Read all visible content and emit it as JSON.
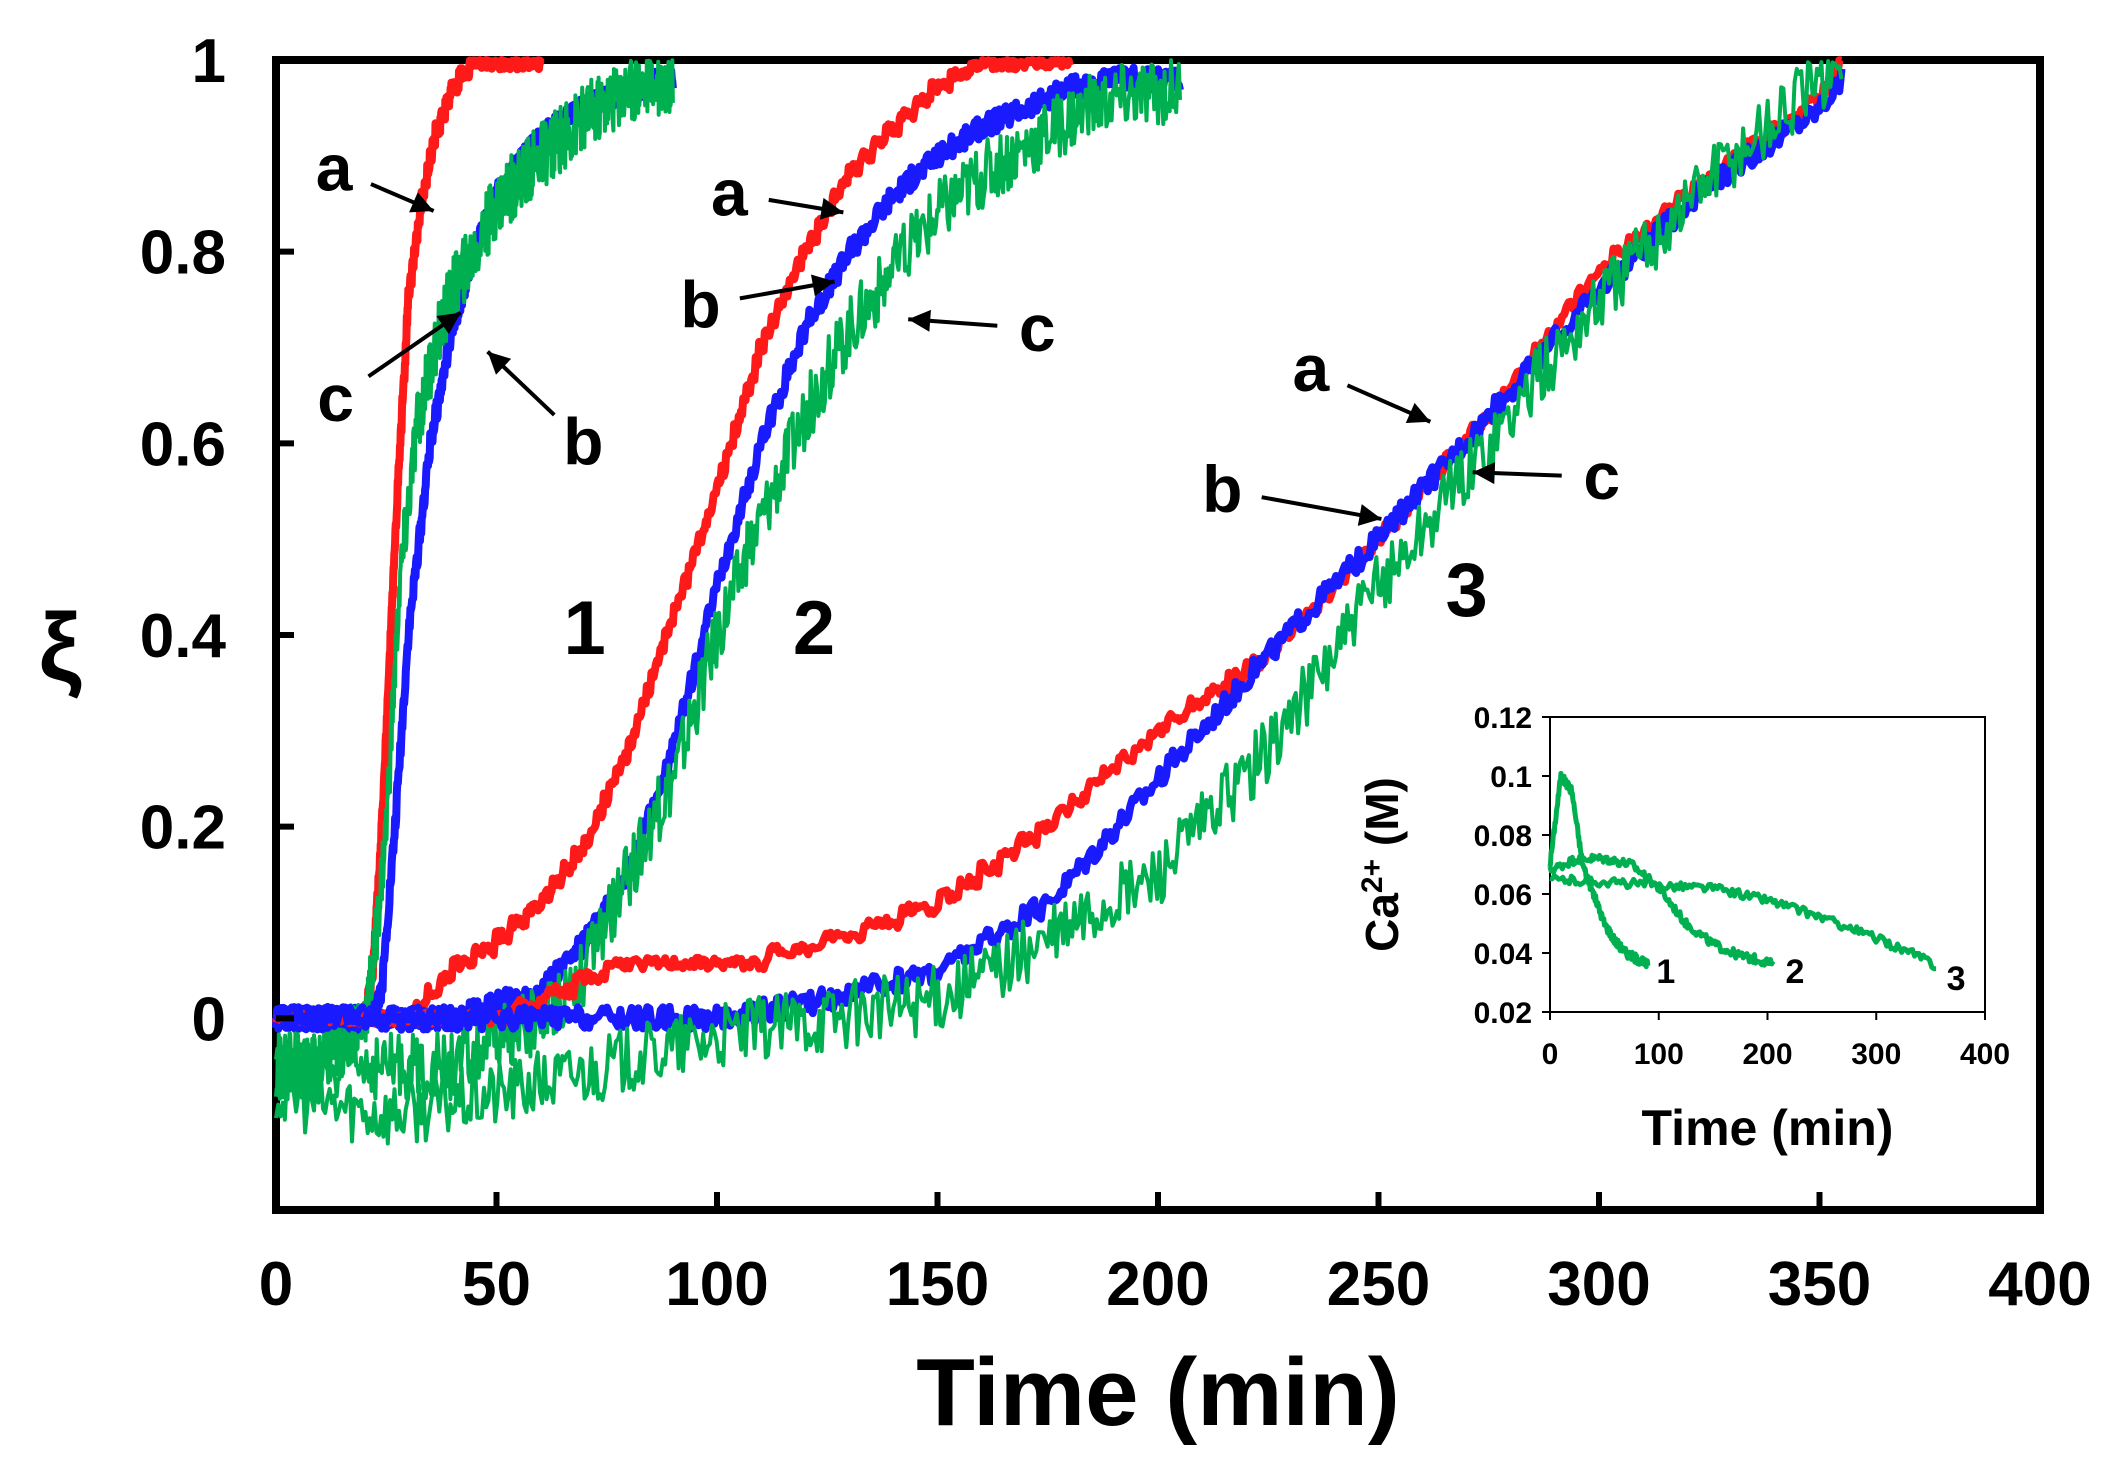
{
  "chart_data": {
    "type": "line",
    "title": "",
    "xlabel": "Time (min)",
    "ylabel": "ξ",
    "xlim": [
      0,
      400
    ],
    "ylim": [
      -0.2,
      1.0
    ],
    "x_ticks": [
      "0",
      "50",
      "100",
      "150",
      "200",
      "250",
      "300",
      "350",
      "400"
    ],
    "y_ticks": [
      "0",
      "0.2",
      "0.4",
      "0.6",
      "0.8",
      "1"
    ],
    "colors": {
      "a": "#ff1a1a",
      "b": "#1a1aff",
      "c": "#00b050"
    },
    "groups": [
      {
        "label": "1",
        "series": [
          {
            "name": "a",
            "x": [
              0,
              10,
              20,
              22,
              24,
              27,
              30,
              33,
              36,
              40,
              45,
              50,
              55,
              60
            ],
            "y": [
              0,
              0,
              0,
              0.05,
              0.2,
              0.5,
              0.75,
              0.85,
              0.92,
              0.97,
              1.0,
              1.0,
              1.0,
              1.0
            ]
          },
          {
            "name": "b",
            "x": [
              0,
              10,
              20,
              24,
              27,
              30,
              35,
              40,
              45,
              50,
              60,
              70,
              80,
              90
            ],
            "y": [
              0,
              0,
              0,
              0.03,
              0.2,
              0.4,
              0.6,
              0.72,
              0.8,
              0.86,
              0.92,
              0.95,
              0.97,
              0.98
            ]
          },
          {
            "name": "c",
            "x": [
              0,
              10,
              20,
              22,
              25,
              28,
              32,
              36,
              40,
              45,
              50,
              60,
              70,
              80,
              90
            ],
            "y": [
              -0.05,
              -0.05,
              0,
              0.05,
              0.2,
              0.45,
              0.62,
              0.7,
              0.76,
              0.8,
              0.85,
              0.9,
              0.94,
              0.97,
              0.98
            ]
          }
        ],
        "annotations": [
          {
            "series": "a",
            "text": "a",
            "x": 37,
            "y": 0.84
          },
          {
            "series": "c",
            "text": "c",
            "x": 43,
            "y": 0.74
          },
          {
            "series": "b",
            "text": "b",
            "x": 47,
            "y": 0.7
          }
        ]
      },
      {
        "label": "2",
        "series": [
          {
            "name": "a",
            "x": [
              0,
              30,
              40,
              50,
              60,
              70,
              80,
              90,
              100,
              110,
              120,
              130,
              140,
              150,
              160,
              170,
              180
            ],
            "y": [
              0,
              0,
              0.05,
              0.08,
              0.12,
              0.18,
              0.28,
              0.42,
              0.55,
              0.7,
              0.8,
              0.88,
              0.93,
              0.97,
              1.0,
              1.0,
              1.0
            ]
          },
          {
            "name": "b",
            "x": [
              0,
              40,
              60,
              70,
              80,
              90,
              100,
              110,
              120,
              130,
              140,
              150,
              160,
              170,
              180,
              190,
              205
            ],
            "y": [
              0,
              0,
              0.03,
              0.08,
              0.15,
              0.28,
              0.45,
              0.6,
              0.72,
              0.8,
              0.86,
              0.9,
              0.93,
              0.95,
              0.97,
              0.98,
              0.98
            ]
          },
          {
            "name": "c",
            "x": [
              0,
              40,
              60,
              70,
              80,
              90,
              100,
              110,
              120,
              130,
              140,
              150,
              160,
              170,
              180,
              190,
              205
            ],
            "y": [
              -0.05,
              -0.05,
              0,
              0.05,
              0.15,
              0.25,
              0.4,
              0.52,
              0.63,
              0.72,
              0.78,
              0.84,
              0.88,
              0.91,
              0.94,
              0.96,
              0.97
            ]
          }
        ],
        "annotations": [
          {
            "series": "a",
            "text": "a",
            "x": 130,
            "y": 0.84
          },
          {
            "series": "b",
            "text": "b",
            "x": 128,
            "y": 0.77
          },
          {
            "series": "c",
            "text": "c",
            "x": 142,
            "y": 0.73
          }
        ]
      },
      {
        "label": "3",
        "series": [
          {
            "name": "a",
            "x": [
              0,
              50,
              75,
              100,
              125,
              150,
              175,
              200,
              225,
              250,
              275,
              300,
              325,
              350,
              355
            ],
            "y": [
              0,
              0,
              0.05,
              0.05,
              0.08,
              0.12,
              0.2,
              0.3,
              0.38,
              0.5,
              0.63,
              0.78,
              0.88,
              0.96,
              1.0
            ]
          },
          {
            "name": "b",
            "x": [
              0,
              50,
              75,
              100,
              125,
              150,
              175,
              200,
              225,
              250,
              275,
              300,
              325,
              350,
              355
            ],
            "y": [
              0,
              0,
              0,
              0,
              0.02,
              0.05,
              0.12,
              0.25,
              0.38,
              0.5,
              0.63,
              0.76,
              0.87,
              0.95,
              0.98
            ]
          },
          {
            "name": "c",
            "x": [
              0,
              25,
              50,
              75,
              100,
              125,
              150,
              175,
              200,
              225,
              250,
              275,
              300,
              325,
              350,
              355
            ],
            "y": [
              -0.08,
              -0.1,
              -0.08,
              -0.05,
              -0.02,
              0,
              0.02,
              0.08,
              0.15,
              0.28,
              0.45,
              0.6,
              0.75,
              0.88,
              0.98,
              1.0
            ]
          }
        ],
        "annotations": [
          {
            "series": "a",
            "text": "a",
            "x": 263,
            "y": 0.62
          },
          {
            "series": "b",
            "text": "b",
            "x": 252,
            "y": 0.52
          },
          {
            "series": "c",
            "text": "c",
            "x": 270,
            "y": 0.57
          }
        ]
      }
    ],
    "inset": {
      "type": "line",
      "xlabel": "Time (min)",
      "ylabel_main": "Ca",
      "ylabel_sup": "2+",
      "ylabel_unit": " (M)",
      "xlim": [
        0,
        400
      ],
      "ylim": [
        0.02,
        0.12
      ],
      "x_ticks": [
        "0",
        "100",
        "200",
        "300",
        "400"
      ],
      "y_ticks": [
        "0.02",
        "0.04",
        "0.06",
        "0.08",
        "0.1",
        "0.12"
      ],
      "series": [
        {
          "name": "1",
          "color": "#00b050",
          "x": [
            0,
            10,
            20,
            30,
            40,
            50,
            60,
            70,
            80,
            90
          ],
          "y": [
            0.07,
            0.1,
            0.095,
            0.07,
            0.06,
            0.05,
            0.044,
            0.04,
            0.038,
            0.036
          ]
        },
        {
          "name": "2",
          "color": "#00b050",
          "x": [
            0,
            25,
            50,
            75,
            100,
            125,
            150,
            175,
            200,
            205
          ],
          "y": [
            0.068,
            0.072,
            0.072,
            0.07,
            0.062,
            0.05,
            0.043,
            0.039,
            0.037,
            0.036
          ]
        },
        {
          "name": "3",
          "color": "#00b050",
          "x": [
            0,
            50,
            100,
            150,
            200,
            250,
            300,
            350,
            355
          ],
          "y": [
            0.065,
            0.064,
            0.063,
            0.062,
            0.058,
            0.052,
            0.045,
            0.037,
            0.035
          ]
        }
      ],
      "labels": [
        "1",
        "2",
        "3"
      ]
    }
  }
}
